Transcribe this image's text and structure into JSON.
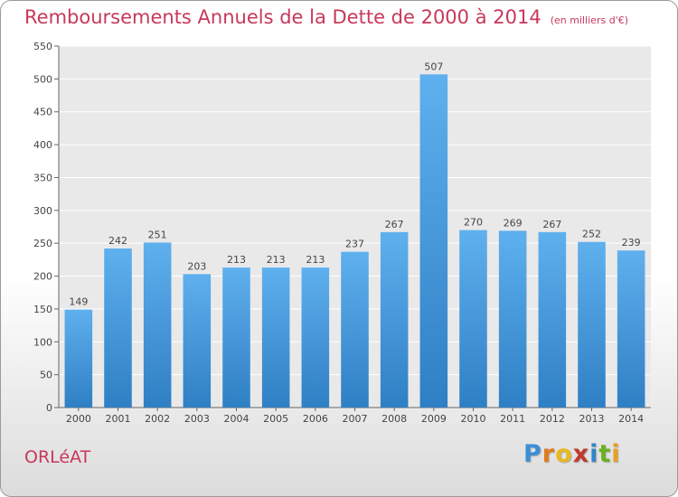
{
  "chart_data": {
    "type": "bar",
    "title": "Remboursements Annuels de la Dette de 2000 à 2014",
    "unit": "(en milliers d'€)",
    "categories": [
      "2000",
      "2001",
      "2002",
      "2003",
      "2004",
      "2005",
      "2006",
      "2007",
      "2008",
      "2009",
      "2010",
      "2011",
      "2012",
      "2013",
      "2014"
    ],
    "values": [
      149,
      242,
      251,
      203,
      213,
      213,
      213,
      237,
      267,
      507,
      270,
      269,
      267,
      252,
      239
    ],
    "ylim": [
      0,
      550
    ],
    "yticks": [
      0,
      50,
      100,
      150,
      200,
      250,
      300,
      350,
      400,
      450,
      500,
      550
    ],
    "grid": true,
    "bar_color": "#4a9ee0"
  },
  "commune": "ORLéAT",
  "brand": {
    "letters": [
      "P",
      "r",
      "o",
      "x",
      "i",
      "t",
      "i"
    ],
    "colors": [
      "#3d8fd6",
      "#e07b1f",
      "#e8b820",
      "#c0392b",
      "#2f86c9",
      "#6ab023",
      "#e8a020"
    ]
  }
}
